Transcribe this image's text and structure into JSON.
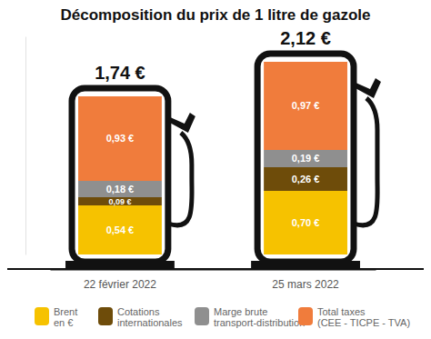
{
  "chart_data": {
    "type": "bar",
    "stacked": true,
    "data_labels": true,
    "grid": false,
    "legend": "bottom",
    "tick_labels": "x",
    "title": "Décomposition du prix de 1 litre de gazole",
    "categories": [
      "22 février 2022",
      "25 mars 2022"
    ],
    "series": [
      {
        "name": "Brent en €",
        "color": "#f6c200",
        "values": [
          0.54,
          0.7
        ],
        "value_labels": [
          "0,54 €",
          "0,70 €"
        ]
      },
      {
        "name": "Cotations internationales",
        "color": "#6e4c0a",
        "values": [
          0.09,
          0.26
        ],
        "value_labels": [
          "0,09 €",
          "0,26 €"
        ]
      },
      {
        "name": "Marge brute transport-distribution",
        "color": "#8f8f8f",
        "values": [
          0.18,
          0.19
        ],
        "value_labels": [
          "0,18 €",
          "0,19 €"
        ]
      },
      {
        "name": "Total taxes (CEE - TICPE - TVA)",
        "color": "#f07c3c",
        "values": [
          0.93,
          0.97
        ],
        "value_labels": [
          "0,93 €",
          "0,97 €"
        ]
      }
    ],
    "totals": [
      1.74,
      2.12
    ],
    "total_labels": [
      "1,74 €",
      "2,12 €"
    ],
    "ylim": [
      0,
      2.4
    ]
  }
}
